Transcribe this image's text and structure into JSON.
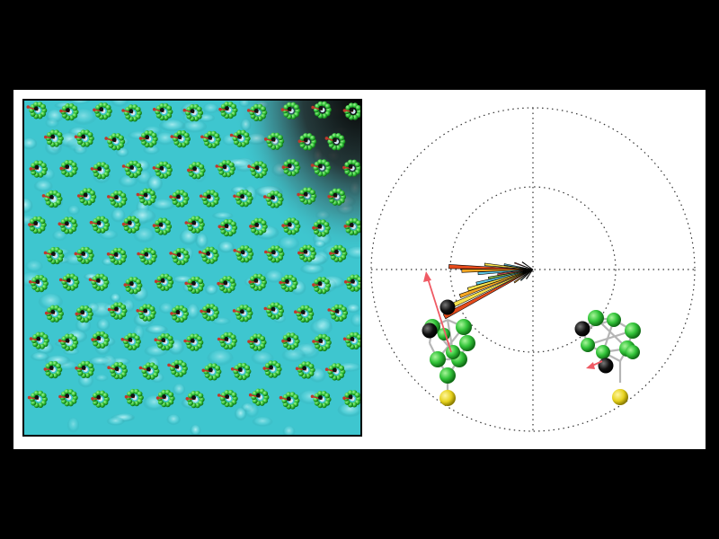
{
  "colors": {
    "page_background": "#000000",
    "figure_background": "#ffffff",
    "surface_cyan": "#3ec6cf",
    "surface_highlight": "#bff3f6",
    "surface_shadow": "#1d7f88",
    "dark_region": "#101010",
    "boron_green": "#33c43a",
    "carbon_black": "#000000",
    "sulfur_yellow": "#e6d21e",
    "dipole_red": "#c0392b",
    "dipole_arrow_pink": "#ef5a64",
    "polar_grid": "#333333",
    "bond_gray": "#b5b5b5",
    "rose_palette": [
      "#e64b1c",
      "#f5a623",
      "#f6e04b",
      "#5fc9e6",
      "#8bc34a",
      "#d9534f",
      "#222222"
    ]
  },
  "left_panel": {
    "name": "stm-topograph-with-molecular-overlay",
    "lattice": {
      "columns": 11,
      "rows": 11
    }
  },
  "right_panel": {
    "name": "orientation-polar-plot",
    "polar_grid": {
      "rings": 2,
      "crosshair": true,
      "style": "dotted"
    },
    "rose_bins": [
      {
        "angle_deg": 152,
        "length": 0.62,
        "color": "#e64b1c"
      },
      {
        "angle_deg": 156,
        "length": 0.55,
        "color": "#f6e04b"
      },
      {
        "angle_deg": 160,
        "length": 0.48,
        "color": "#f5a623"
      },
      {
        "angle_deg": 163,
        "length": 0.42,
        "color": "#f6e04b"
      },
      {
        "angle_deg": 166,
        "length": 0.36,
        "color": "#5fc9e6"
      },
      {
        "angle_deg": 169,
        "length": 0.28,
        "color": "#8bc34a"
      },
      {
        "angle_deg": 172,
        "length": 0.22,
        "color": "#d9534f"
      },
      {
        "angle_deg": 176,
        "length": 0.34,
        "color": "#5fc9e6"
      },
      {
        "angle_deg": 179,
        "length": 0.44,
        "color": "#f5a623"
      },
      {
        "angle_deg": 182,
        "length": 0.52,
        "color": "#e64b1c"
      },
      {
        "angle_deg": 186,
        "length": 0.3,
        "color": "#f6e04b"
      },
      {
        "angle_deg": 190,
        "length": 0.18,
        "color": "#5fc9e6"
      },
      {
        "angle_deg": 200,
        "length": 0.12,
        "color": "#d9534f"
      },
      {
        "angle_deg": 145,
        "length": 0.14,
        "color": "#f5a623"
      },
      {
        "angle_deg": 138,
        "length": 0.1,
        "color": "#5fc9e6"
      },
      {
        "angle_deg": 125,
        "length": 0.07,
        "color": "#222222"
      },
      {
        "angle_deg": 215,
        "length": 0.08,
        "color": "#222222"
      }
    ],
    "models": [
      {
        "name": "carborane-model-left",
        "carbon_count": 2,
        "sulfur_count": 1,
        "dipole_arrow": "large"
      },
      {
        "name": "carborane-model-right",
        "carbon_count": 2,
        "sulfur_count": 1,
        "dipole_arrow": "small"
      }
    ]
  }
}
